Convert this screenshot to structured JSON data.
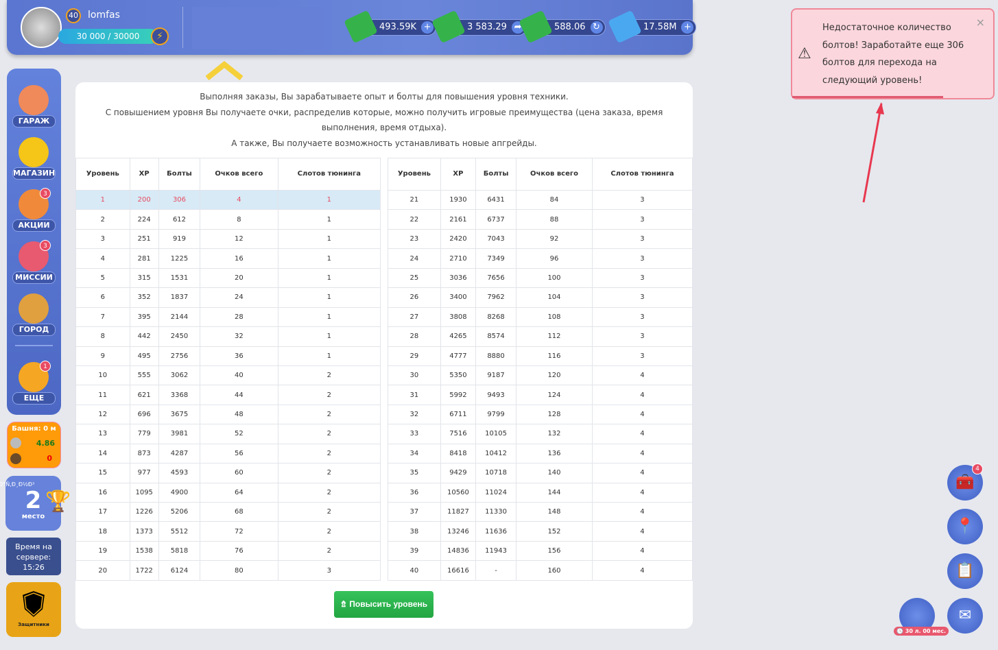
{
  "header": {
    "level": "40",
    "username": "lomfas",
    "xp": "30 000 / 30000",
    "currencies": [
      {
        "value": "493.59K",
        "icon": "cash-heart-icon",
        "action": "plus"
      },
      {
        "value": "3 583.29",
        "icon": "cash-arrow-icon",
        "action": "share"
      },
      {
        "value": "588.06",
        "icon": "cash-wheel-icon",
        "action": "refresh"
      },
      {
        "value": "17.58M",
        "icon": "diamond-icon",
        "action": "plus"
      }
    ]
  },
  "sidebar": {
    "items": [
      {
        "label": "ГАРАЖ",
        "badge": ""
      },
      {
        "label": "МАГАЗИН",
        "badge": ""
      },
      {
        "label": "АКЦИИ",
        "badge": "3"
      },
      {
        "label": "МИССИИ",
        "badge": "3"
      },
      {
        "label": "ГОРОД",
        "badge": ""
      },
      {
        "label": "ЕЩЕ",
        "badge": "1"
      }
    ]
  },
  "tower": {
    "title": "Башня: 0 м",
    "row1": "4.86",
    "row2": "0"
  },
  "place": {
    "garbled": "Ð°Ñ‚Ð¸Ð½Ð³",
    "number": "2",
    "label": "место"
  },
  "server": {
    "label": "Время на сервере:",
    "time": "15:26"
  },
  "defenders": {
    "label": "Защитники"
  },
  "intro": [
    "Выполняя заказы, Вы зарабатываете опыт и болты для повышения уровня техники.",
    "С повышением уровня Вы получаете очки, распределив которые, можно получить игровые преимущества (цена заказа, время выполнения, время отдыха).",
    "А также, Вы получаете возможность устанавливать новые апгрейды."
  ],
  "table": {
    "headers": [
      "Уровень",
      "XP",
      "Болты",
      "Очков всего",
      "Слотов тюнинга"
    ],
    "left": [
      [
        "1",
        "200",
        "306",
        "4",
        "1"
      ],
      [
        "2",
        "224",
        "612",
        "8",
        "1"
      ],
      [
        "3",
        "251",
        "919",
        "12",
        "1"
      ],
      [
        "4",
        "281",
        "1225",
        "16",
        "1"
      ],
      [
        "5",
        "315",
        "1531",
        "20",
        "1"
      ],
      [
        "6",
        "352",
        "1837",
        "24",
        "1"
      ],
      [
        "7",
        "395",
        "2144",
        "28",
        "1"
      ],
      [
        "8",
        "442",
        "2450",
        "32",
        "1"
      ],
      [
        "9",
        "495",
        "2756",
        "36",
        "1"
      ],
      [
        "10",
        "555",
        "3062",
        "40",
        "2"
      ],
      [
        "11",
        "621",
        "3368",
        "44",
        "2"
      ],
      [
        "12",
        "696",
        "3675",
        "48",
        "2"
      ],
      [
        "13",
        "779",
        "3981",
        "52",
        "2"
      ],
      [
        "14",
        "873",
        "4287",
        "56",
        "2"
      ],
      [
        "15",
        "977",
        "4593",
        "60",
        "2"
      ],
      [
        "16",
        "1095",
        "4900",
        "64",
        "2"
      ],
      [
        "17",
        "1226",
        "5206",
        "68",
        "2"
      ],
      [
        "18",
        "1373",
        "5512",
        "72",
        "2"
      ],
      [
        "19",
        "1538",
        "5818",
        "76",
        "2"
      ],
      [
        "20",
        "1722",
        "6124",
        "80",
        "3"
      ]
    ],
    "right": [
      [
        "21",
        "1930",
        "6431",
        "84",
        "3"
      ],
      [
        "22",
        "2161",
        "6737",
        "88",
        "3"
      ],
      [
        "23",
        "2420",
        "7043",
        "92",
        "3"
      ],
      [
        "24",
        "2710",
        "7349",
        "96",
        "3"
      ],
      [
        "25",
        "3036",
        "7656",
        "100",
        "3"
      ],
      [
        "26",
        "3400",
        "7962",
        "104",
        "3"
      ],
      [
        "27",
        "3808",
        "8268",
        "108",
        "3"
      ],
      [
        "28",
        "4265",
        "8574",
        "112",
        "3"
      ],
      [
        "29",
        "4777",
        "8880",
        "116",
        "3"
      ],
      [
        "30",
        "5350",
        "9187",
        "120",
        "4"
      ],
      [
        "31",
        "5992",
        "9493",
        "124",
        "4"
      ],
      [
        "32",
        "6711",
        "9799",
        "128",
        "4"
      ],
      [
        "33",
        "7516",
        "10105",
        "132",
        "4"
      ],
      [
        "34",
        "8418",
        "10412",
        "136",
        "4"
      ],
      [
        "35",
        "9429",
        "10718",
        "140",
        "4"
      ],
      [
        "36",
        "10560",
        "11024",
        "144",
        "4"
      ],
      [
        "37",
        "11827",
        "11330",
        "148",
        "4"
      ],
      [
        "38",
        "13246",
        "11636",
        "152",
        "4"
      ],
      [
        "39",
        "14836",
        "11943",
        "156",
        "4"
      ],
      [
        "40",
        "16616",
        "-",
        "160",
        "4"
      ]
    ]
  },
  "upgrade_button": "⇯ Повысить уровень",
  "notification": {
    "text": "Недостаточное количество болтов! Заработайте еще 306 болтов для перехода на следующий уровень!",
    "close": "×"
  },
  "right_buttons": {
    "tasks_badge": "4",
    "timer": "30 л. 00 мес."
  },
  "colors": {
    "topbar": "#5a76d0",
    "accent_green": "#22a542",
    "active_row": "#d7eaf6",
    "active_text": "#e84a5f",
    "notif_bg": "#fbd6dd"
  }
}
